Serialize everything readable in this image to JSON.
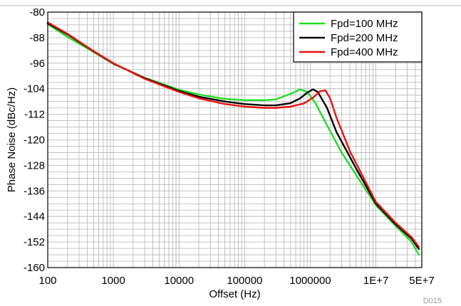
{
  "chart_data": {
    "type": "line",
    "title": "",
    "xlabel": "Offset (Hz)",
    "ylabel": "Phase Noise (dBc/Hz)",
    "xscale": "log",
    "xlim": [
      100,
      50000000
    ],
    "ylim": [
      -160,
      -80
    ],
    "x_ticks": [
      100,
      1000,
      10000,
      100000,
      1000000,
      10000000,
      50000000
    ],
    "x_tick_labels": [
      "100",
      "1000",
      "10000",
      "100000",
      "1000000",
      "1E+7",
      "5E+7"
    ],
    "y_ticks": [
      -80,
      -88,
      -96,
      -104,
      -112,
      -120,
      -128,
      -136,
      -144,
      -152,
      -160
    ],
    "y_tick_labels": [
      "-80",
      "-88",
      "-96",
      "-104",
      "-112",
      "-120",
      "-128",
      "-136",
      "-144",
      "-152",
      "-160"
    ],
    "grid": true,
    "legend_position": "top-right",
    "figure_code": "D015",
    "series": [
      {
        "name": "Fpd=100 MHz",
        "color": "#22dd22",
        "points": [
          [
            100,
            -83.8
          ],
          [
            200,
            -87.8
          ],
          [
            500,
            -92.5
          ],
          [
            1000,
            -96.2
          ],
          [
            3000,
            -100.6
          ],
          [
            10000,
            -104.3
          ],
          [
            20000,
            -105.8
          ],
          [
            50000,
            -107.2
          ],
          [
            100000,
            -107.6
          ],
          [
            200000,
            -107.6
          ],
          [
            300000,
            -107.3
          ],
          [
            500000,
            -105.6
          ],
          [
            700000,
            -104.2
          ],
          [
            900000,
            -105.0
          ],
          [
            1200000,
            -108.5
          ],
          [
            1700000,
            -114.5
          ],
          [
            3000000,
            -124.0
          ],
          [
            10000000,
            -140.5
          ],
          [
            20000000,
            -147.0
          ],
          [
            35000000,
            -152.0
          ],
          [
            45000000,
            -156.0
          ]
        ]
      },
      {
        "name": "Fpd=200 MHz",
        "color": "#000000",
        "points": [
          [
            100,
            -83.5
          ],
          [
            200,
            -87.0
          ],
          [
            500,
            -92.3
          ],
          [
            1000,
            -96.1
          ],
          [
            3000,
            -100.7
          ],
          [
            10000,
            -104.7
          ],
          [
            20000,
            -106.5
          ],
          [
            50000,
            -108.0
          ],
          [
            100000,
            -108.8
          ],
          [
            200000,
            -109.2
          ],
          [
            300000,
            -109.2
          ],
          [
            500000,
            -108.5
          ],
          [
            700000,
            -107.0
          ],
          [
            900000,
            -105.2
          ],
          [
            1100000,
            -104.2
          ],
          [
            1300000,
            -105.0
          ],
          [
            1800000,
            -110.0
          ],
          [
            2500000,
            -117.5
          ],
          [
            5000000,
            -129.0
          ],
          [
            10000000,
            -140.0
          ],
          [
            20000000,
            -146.5
          ],
          [
            35000000,
            -151.0
          ],
          [
            45000000,
            -154.2
          ]
        ]
      },
      {
        "name": "Fpd=400 MHz",
        "color": "#ee1111",
        "points": [
          [
            100,
            -83.2
          ],
          [
            200,
            -86.8
          ],
          [
            500,
            -92.2
          ],
          [
            1000,
            -96.0
          ],
          [
            3000,
            -100.9
          ],
          [
            10000,
            -105.0
          ],
          [
            20000,
            -107.0
          ],
          [
            50000,
            -108.8
          ],
          [
            100000,
            -109.6
          ],
          [
            200000,
            -110.0
          ],
          [
            300000,
            -110.0
          ],
          [
            500000,
            -109.6
          ],
          [
            800000,
            -108.6
          ],
          [
            1100000,
            -106.8
          ],
          [
            1400000,
            -104.8
          ],
          [
            1700000,
            -104.5
          ],
          [
            2000000,
            -107.0
          ],
          [
            2500000,
            -113.0
          ],
          [
            4000000,
            -123.5
          ],
          [
            10000000,
            -139.5
          ],
          [
            20000000,
            -146.0
          ],
          [
            35000000,
            -150.5
          ],
          [
            45000000,
            -153.5
          ]
        ]
      }
    ]
  }
}
